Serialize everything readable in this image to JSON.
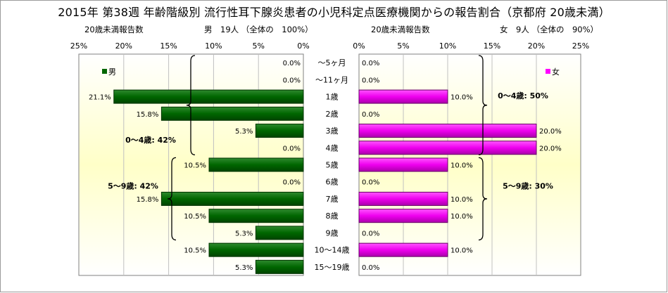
{
  "chart_data": {
    "type": "bar",
    "title": "2015年 第38週 年齢階級別 流行性耳下腺炎患者の小児科定点医療機関からの報告割合（京都府 20歳未満）",
    "categories": [
      "～5ヶ月",
      "～11ヶ月",
      "1歳",
      "2歳",
      "3歳",
      "4歳",
      "5歳",
      "6歳",
      "7歳",
      "8歳",
      "9歳",
      "10～14歳",
      "15～19歳"
    ],
    "xlim": [
      0,
      25
    ],
    "ticks": [
      25,
      20,
      15,
      10,
      5,
      0
    ],
    "tick_suffix": "%",
    "male": {
      "axis_label": "20歳未満報告数",
      "header": "男　19人 （全体の　100%）",
      "legend": "男",
      "color": "#006600",
      "values": [
        0.0,
        0.0,
        21.1,
        15.8,
        5.3,
        0.0,
        10.5,
        0.0,
        15.8,
        10.5,
        5.3,
        10.5,
        5.3
      ],
      "labels": [
        "0.0%",
        "0.0%",
        "21.1%",
        "15.8%",
        "5.3%",
        "0.0%",
        "10.5%",
        "0.0%",
        "15.8%",
        "10.5%",
        "5.3%",
        "10.5%",
        "5.3%"
      ],
      "groups": [
        {
          "label": "0～4歳: 42%",
          "from": 0,
          "to": 5
        },
        {
          "label": "5～9歳: 42%",
          "from": 6,
          "to": 10
        }
      ]
    },
    "female": {
      "axis_label": "20歳未満報告数",
      "header": "女　9人 （全体の　90%）",
      "legend": "女",
      "color": "#ff00ff",
      "values": [
        0.0,
        0.0,
        10.0,
        0.0,
        20.0,
        20.0,
        10.0,
        0.0,
        10.0,
        10.0,
        0.0,
        10.0,
        0.0
      ],
      "labels": [
        "0.0%",
        "0.0%",
        "10.0%",
        "0.0%",
        "20.0%",
        "20.0%",
        "10.0%",
        "0.0%",
        "10.0%",
        "10.0%",
        "0.0%",
        "10.0%",
        "0.0%"
      ],
      "groups": [
        {
          "label": "0～4歳: 50%",
          "from": 0,
          "to": 5
        },
        {
          "label": "5～9歳: 30%",
          "from": 6,
          "to": 10
        }
      ]
    }
  }
}
